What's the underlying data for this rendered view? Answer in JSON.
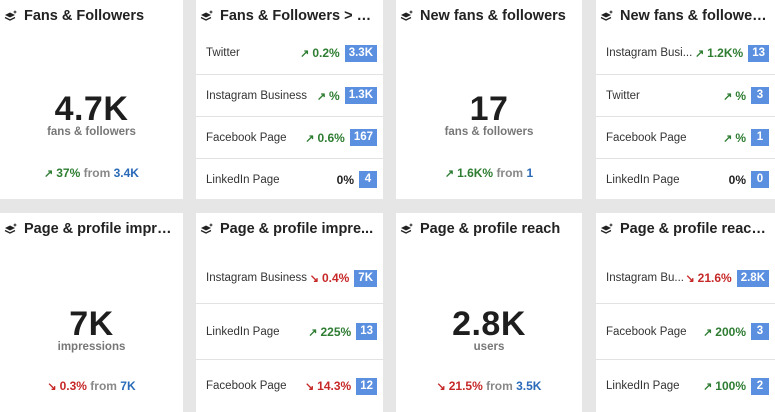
{
  "cards": {
    "fans_followers": {
      "title": "Fans & Followers",
      "value": "4.7K",
      "unit": "fans & followers",
      "change_arrow": "↗",
      "change": "37%",
      "from_label": "from",
      "base": "3.4K"
    },
    "fans_followers_source": {
      "title": "Fans & Followers > S...",
      "rows": [
        {
          "label": "Twitter",
          "arrow": "↗",
          "pct": "0.2%",
          "count": "3.3K"
        },
        {
          "label": "Instagram Business",
          "arrow": "↗",
          "pct": "%",
          "count": "1.3K"
        },
        {
          "label": "Facebook Page",
          "arrow": "↗",
          "pct": "0.6%",
          "count": "167"
        },
        {
          "label": "LinkedIn Page",
          "arrow": "",
          "pct": "0%",
          "count": "4"
        }
      ]
    },
    "new_fans": {
      "title": "New fans & followers",
      "value": "17",
      "unit": "fans & followers",
      "change_arrow": "↗",
      "change": "1.6K%",
      "from_label": "from",
      "base": "1"
    },
    "new_fans_source": {
      "title": "New fans & followers...",
      "rows": [
        {
          "label": "Instagram Busi...",
          "arrow": "↗",
          "pct": "1.2K%",
          "count": "13"
        },
        {
          "label": "Twitter",
          "arrow": "↗",
          "pct": "%",
          "count": "3"
        },
        {
          "label": "Facebook Page",
          "arrow": "↗",
          "pct": "%",
          "count": "1"
        },
        {
          "label": "LinkedIn Page",
          "arrow": "",
          "pct": "0%",
          "count": "0"
        }
      ]
    },
    "impressions": {
      "title": "Page & profile impre...",
      "value": "7K",
      "unit": "impressions",
      "change_arrow": "↘",
      "change": "0.3%",
      "from_label": "from",
      "base": "7K"
    },
    "impressions_source": {
      "title": "Page & profile impre...",
      "rows": [
        {
          "label": "Instagram Business",
          "arrow": "↘",
          "pct": "0.4%",
          "count": "7K"
        },
        {
          "label": "LinkedIn Page",
          "arrow": "↗",
          "pct": "225%",
          "count": "13"
        },
        {
          "label": "Facebook Page",
          "arrow": "↘",
          "pct": "14.3%",
          "count": "12"
        }
      ]
    },
    "reach": {
      "title": "Page & profile reach",
      "value": "2.8K",
      "unit": "users",
      "change_arrow": "↘",
      "change": "21.5%",
      "from_label": "from",
      "base": "3.5K"
    },
    "reach_source": {
      "title": "Page & profile reach ...",
      "rows": [
        {
          "label": "Instagram Bu...",
          "arrow": "↘",
          "pct": "21.6%",
          "count": "2.8K"
        },
        {
          "label": "Facebook Page",
          "arrow": "↗",
          "pct": "200%",
          "count": "3"
        },
        {
          "label": "LinkedIn Page",
          "arrow": "↗",
          "pct": "100%",
          "count": "2"
        }
      ]
    }
  },
  "colors": {
    "up": "#2e7d32",
    "down": "#c62828",
    "badge": "#5b8fe0",
    "base_link": "#2a6ab8"
  },
  "icons": {
    "card_icon": "layers-sparkle-icon"
  }
}
